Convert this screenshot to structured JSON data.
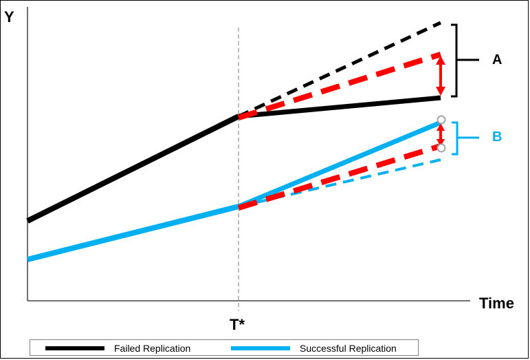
{
  "axes": {
    "y_label": "Y",
    "x_label": "Time",
    "marker_label": "T*"
  },
  "brackets": {
    "a_label": "A",
    "b_label": "B"
  },
  "legend": {
    "failed_label": "Failed Replication",
    "successful_label": "Successful Replication"
  },
  "colors": {
    "failed": "#000000",
    "successful": "#00b0f0",
    "counterfactual": "#ff0000",
    "marker_line": "#a6a6a6",
    "axis": "#404040",
    "endpoint_circle": "#a6a6a6"
  }
}
